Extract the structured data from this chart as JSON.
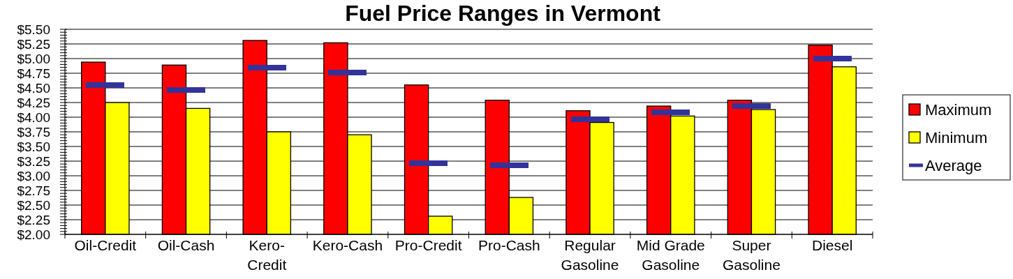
{
  "chart_data": {
    "type": "bar",
    "title": "Fuel Price Ranges in Vermont",
    "categories": [
      "Oil-Credit",
      "Oil-Cash",
      "Kero-Credit",
      "Kero-Cash",
      "Pro-Credit",
      "Pro-Cash",
      "Regular Gasoline",
      "Mid Grade Gasoline",
      "Super Gasoline",
      "Diesel"
    ],
    "series": [
      {
        "name": "Maximum",
        "color": "#ff0000",
        "values": [
          4.94,
          4.89,
          5.31,
          5.27,
          4.55,
          4.29,
          4.11,
          4.19,
          4.29,
          5.23
        ]
      },
      {
        "name": "Minimum",
        "color": "#ffff00",
        "values": [
          4.25,
          4.15,
          3.75,
          3.7,
          2.31,
          2.63,
          3.91,
          4.02,
          4.13,
          4.86
        ]
      },
      {
        "name": "Average",
        "type": "scatter",
        "color": "#333399",
        "x": [
          "Oil-Credit",
          "Oil-Cash",
          "Kero-Credit",
          "Kero-Cash",
          "Pro-Credit",
          "Pro-Cash",
          "Regular Gasoline",
          "Mid Grade Gasoline",
          "Super Gasoline",
          "Diesel"
        ],
        "values": [
          4.55,
          4.47,
          4.85,
          4.76,
          3.22,
          3.18,
          3.97,
          4.08,
          4.19,
          5.0
        ]
      }
    ],
    "ylim": [
      2,
      5.5
    ],
    "yticks": [
      {
        "value": 2,
        "label": "$2.00"
      },
      {
        "value": 2.05,
        "label": null
      },
      {
        "value": 2.1,
        "label": null
      },
      {
        "value": 2.15,
        "label": null
      },
      {
        "value": 2.2,
        "label": null
      },
      {
        "value": 2.25,
        "label": "$2.25"
      },
      {
        "value": 2.3,
        "label": null
      },
      {
        "value": 2.35,
        "label": null
      },
      {
        "value": 2.4,
        "label": null
      },
      {
        "value": 2.45,
        "label": null
      },
      {
        "value": 2.5,
        "label": "$2.50"
      },
      {
        "value": 2.55,
        "label": null
      },
      {
        "value": 2.6,
        "label": null
      },
      {
        "value": 2.65,
        "label": null
      },
      {
        "value": 2.7,
        "label": null
      },
      {
        "value": 2.75,
        "label": "$2.75"
      },
      {
        "value": 2.8,
        "label": null
      },
      {
        "value": 2.85,
        "label": null
      },
      {
        "value": 2.9,
        "label": null
      },
      {
        "value": 2.95,
        "label": null
      },
      {
        "value": 3,
        "label": "$3.00"
      },
      {
        "value": 3.05,
        "label": null
      },
      {
        "value": 3.1,
        "label": null
      },
      {
        "value": 3.15,
        "label": null
      },
      {
        "value": 3.2,
        "label": null
      },
      {
        "value": 3.25,
        "label": "$3.25"
      },
      {
        "value": 3.3,
        "label": null
      },
      {
        "value": 3.35,
        "label": null
      },
      {
        "value": 3.4,
        "label": null
      },
      {
        "value": 3.45,
        "label": null
      },
      {
        "value": 3.5,
        "label": "$3.50"
      },
      {
        "value": 3.55,
        "label": null
      },
      {
        "value": 3.6,
        "label": null
      },
      {
        "value": 3.65,
        "label": null
      },
      {
        "value": 3.7,
        "label": null
      },
      {
        "value": 3.75,
        "label": "$3.75"
      },
      {
        "value": 3.8,
        "label": null
      },
      {
        "value": 3.85,
        "label": null
      },
      {
        "value": 3.9,
        "label": null
      },
      {
        "value": 3.95,
        "label": null
      },
      {
        "value": 4,
        "label": "$4.00"
      },
      {
        "value": 4.05,
        "label": null
      },
      {
        "value": 4.1,
        "label": null
      },
      {
        "value": 4.15,
        "label": null
      },
      {
        "value": 4.2,
        "label": null
      },
      {
        "value": 4.25,
        "label": "$4.25"
      },
      {
        "value": 4.3,
        "label": null
      },
      {
        "value": 4.35,
        "label": null
      },
      {
        "value": 4.4,
        "label": null
      },
      {
        "value": 4.45,
        "label": null
      },
      {
        "value": 4.5,
        "label": "$4.50"
      },
      {
        "value": 4.55,
        "label": null
      },
      {
        "value": 4.6,
        "label": null
      },
      {
        "value": 4.65,
        "label": null
      },
      {
        "value": 4.7,
        "label": null
      },
      {
        "value": 4.75,
        "label": "$4.75"
      },
      {
        "value": 4.8,
        "label": null
      },
      {
        "value": 4.85,
        "label": null
      },
      {
        "value": 4.9,
        "label": null
      },
      {
        "value": 4.95,
        "label": null
      },
      {
        "value": 5,
        "label": "$5.00"
      },
      {
        "value": 5.05,
        "label": null
      },
      {
        "value": 5.1,
        "label": null
      },
      {
        "value": 5.15,
        "label": null
      },
      {
        "value": 5.2,
        "label": null
      },
      {
        "value": 5.25,
        "label": "$5.25"
      },
      {
        "value": 5.3,
        "label": null
      },
      {
        "value": 5.35,
        "label": null
      },
      {
        "value": 5.4,
        "label": null
      },
      {
        "value": 5.45,
        "label": null
      },
      {
        "value": 5.5,
        "label": "$5.50"
      }
    ],
    "grid": "y",
    "legend": "right"
  }
}
